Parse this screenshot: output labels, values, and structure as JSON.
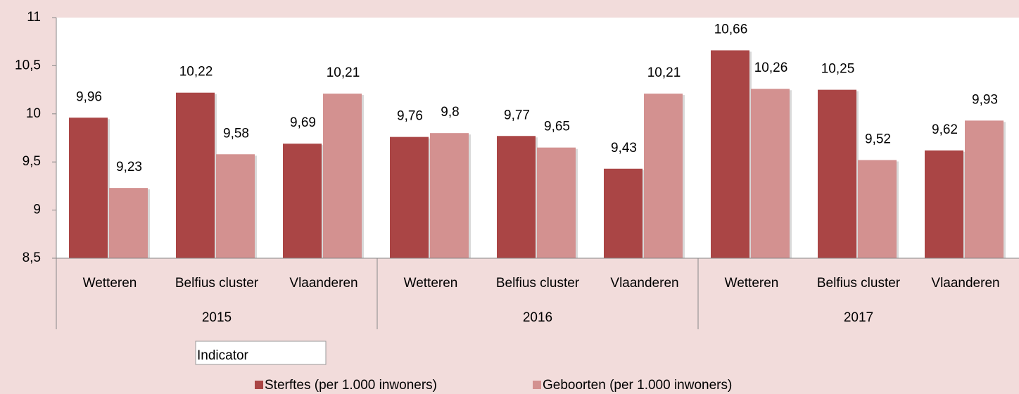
{
  "chart_data": {
    "type": "bar",
    "categories": [
      "Wetteren",
      "Belfius cluster",
      "Vlaanderen",
      "Wetteren",
      "Belfius cluster",
      "Vlaanderen",
      "Wetteren",
      "Belfius cluster",
      "Vlaanderen"
    ],
    "category_groups": [
      "2015",
      "2016",
      "2017"
    ],
    "series": [
      {
        "name": "Sterftes (per 1.000 inwoners)",
        "color": "#aa4545",
        "values": [
          9.96,
          10.22,
          9.69,
          9.76,
          9.77,
          9.43,
          10.66,
          10.25,
          9.62
        ],
        "value_labels": [
          "9,96",
          "10,22",
          "9,69",
          "9,76",
          "9,77",
          "9,43",
          "10,66",
          "10,25",
          "9,62"
        ]
      },
      {
        "name": "Geboorten (per 1.000 inwoners)",
        "color": "#d39190",
        "values": [
          9.23,
          9.58,
          10.21,
          9.8,
          9.65,
          10.21,
          10.26,
          9.52,
          9.93
        ],
        "value_labels": [
          "9,23",
          "9,58",
          "10,21",
          "9,8",
          "9,65",
          "10,21",
          "10,26",
          "9,52",
          "9,93"
        ]
      }
    ],
    "ylim": [
      8.5,
      11
    ],
    "yticks": [
      {
        "value": 8.5,
        "label": "8,5"
      },
      9,
      {
        "value": 9.5,
        "label": "9,5"
      },
      10,
      {
        "value": 10.5,
        "label": "10,5"
      },
      11
    ],
    "legend_title": "Indicator",
    "legend": "bottom"
  }
}
